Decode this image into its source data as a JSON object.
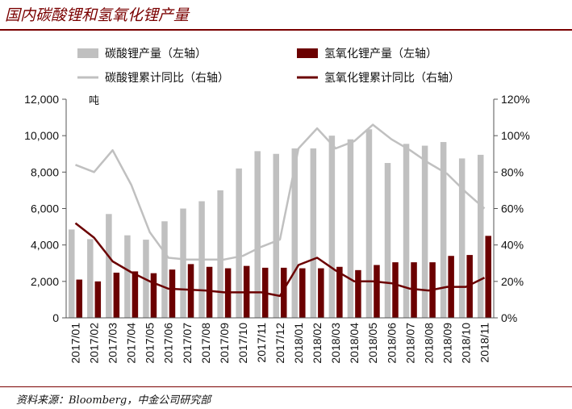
{
  "header": {
    "title": "国内碳酸锂和氢氧化锂产量"
  },
  "footer": {
    "source": "资料来源：Bloomberg，中金公司研究部"
  },
  "colors": {
    "li_carbonate": "#c0c0c0",
    "li_hydroxide": "#6b0000",
    "accent": "#7a0000"
  },
  "chart_data": {
    "type": "bar",
    "title": "",
    "y_unit": "吨",
    "x": [
      "2017/01",
      "2017/02",
      "2017/03",
      "2017/04",
      "2017/05",
      "2017/06",
      "2017/07",
      "2017/08",
      "2017/09",
      "2017/10",
      "2017/11",
      "2017/12",
      "2018/01",
      "2018/02",
      "2018/03",
      "2018/04",
      "2018/05",
      "2018/06",
      "2018/07",
      "2018/08",
      "2018/09",
      "2018/10",
      "2018/11"
    ],
    "ylim_left": [
      0,
      12000
    ],
    "yticks_left": [
      "0",
      "2,000",
      "4,000",
      "6,000",
      "8,000",
      "10,000",
      "12,000"
    ],
    "ylim_right": [
      0,
      1.2
    ],
    "yticks_right": [
      "0%",
      "20%",
      "40%",
      "60%",
      "80%",
      "100%",
      "120%"
    ],
    "grid": false,
    "legend_position": "top",
    "series": [
      {
        "name": "碳酸锂产量（左轴）",
        "type": "bar",
        "axis": "left",
        "values": [
          4850,
          4320,
          5700,
          4530,
          4290,
          5300,
          6000,
          6400,
          7000,
          8200,
          9150,
          9000,
          9300,
          9300,
          10000,
          9800,
          10350,
          8500,
          9550,
          9450,
          9650,
          8750,
          8950
        ]
      },
      {
        "name": "氢氧化锂产量（左轴）",
        "type": "bar",
        "axis": "left",
        "values": [
          2100,
          2000,
          2480,
          2550,
          2450,
          2650,
          2950,
          2800,
          2720,
          2850,
          2750,
          2750,
          2720,
          2720,
          2800,
          2620,
          2900,
          3050,
          3050,
          3050,
          3400,
          3450,
          4500
        ]
      },
      {
        "name": "碳酸锂累计同比（右轴）",
        "type": "line",
        "axis": "right",
        "values": [
          0.84,
          0.8,
          0.92,
          0.73,
          0.47,
          0.33,
          0.32,
          0.32,
          0.32,
          0.34,
          0.39,
          0.43,
          0.93,
          1.04,
          0.93,
          0.97,
          1.06,
          0.98,
          0.92,
          0.85,
          0.79,
          0.69,
          0.6
        ]
      },
      {
        "name": "氢氧化锂累计同比（右轴）",
        "type": "line",
        "axis": "right",
        "values": [
          0.52,
          0.44,
          0.31,
          0.25,
          0.2,
          0.16,
          0.155,
          0.15,
          0.14,
          0.14,
          0.14,
          0.12,
          0.29,
          0.33,
          0.26,
          0.2,
          0.2,
          0.19,
          0.16,
          0.15,
          0.17,
          0.17,
          0.22
        ]
      }
    ]
  }
}
